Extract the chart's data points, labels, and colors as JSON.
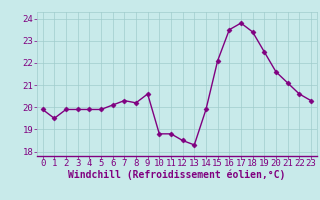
{
  "x": [
    0,
    1,
    2,
    3,
    4,
    5,
    6,
    7,
    8,
    9,
    10,
    11,
    12,
    13,
    14,
    15,
    16,
    17,
    18,
    19,
    20,
    21,
    22,
    23
  ],
  "y": [
    19.9,
    19.5,
    19.9,
    19.9,
    19.9,
    19.9,
    20.1,
    20.3,
    20.2,
    20.6,
    18.8,
    18.8,
    18.5,
    18.3,
    19.9,
    22.1,
    23.5,
    23.8,
    23.4,
    22.5,
    21.6,
    21.1,
    20.6,
    20.3
  ],
  "line_color": "#800080",
  "marker": "D",
  "markersize": 2.5,
  "linewidth": 1.0,
  "background_color": "#c8eaea",
  "grid_color": "#a0cccc",
  "xlabel": "Windchill (Refroidissement éolien,°C)",
  "xlabel_color": "#800080",
  "xlabel_fontsize": 7,
  "tick_color": "#800080",
  "tick_fontsize": 6.5,
  "ylim": [
    17.8,
    24.3
  ],
  "yticks": [
    18,
    19,
    20,
    21,
    22,
    23,
    24
  ],
  "xlim": [
    -0.5,
    23.5
  ],
  "xticks": [
    0,
    1,
    2,
    3,
    4,
    5,
    6,
    7,
    8,
    9,
    10,
    11,
    12,
    13,
    14,
    15,
    16,
    17,
    18,
    19,
    20,
    21,
    22,
    23
  ]
}
